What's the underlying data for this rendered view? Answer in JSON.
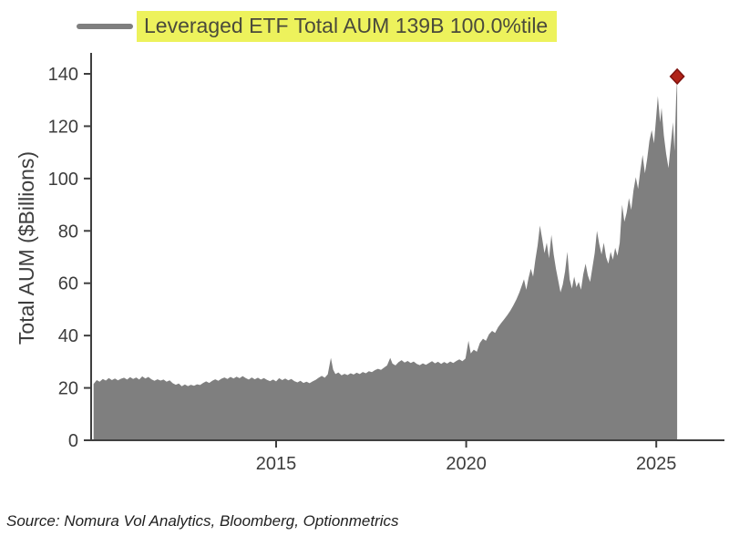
{
  "legend": {
    "label": "Leveraged ETF Total AUM 139B 100.0%tile",
    "marker_color": "#7f7f7f",
    "highlight_color": "#edf25c"
  },
  "source": {
    "text": "Source: Nomura Vol Analytics, Bloomberg, Optionmetrics"
  },
  "colors": {
    "area": "#7f7f7f",
    "axis": "#3f3f3f",
    "tick_text": "#3d3d3d",
    "marker_fill": "#b02318",
    "marker_edge": "#7e120e"
  },
  "chart_data": {
    "type": "area",
    "title": "",
    "xlabel": "",
    "ylabel": "Total AUM ($Billions)",
    "xlim": [
      2010.2,
      2026.3
    ],
    "ylim": [
      0,
      140
    ],
    "x_ticks": [
      2015,
      2020,
      2025
    ],
    "y_ticks": [
      0,
      20,
      40,
      60,
      80,
      100,
      120,
      140
    ],
    "grid": false,
    "legend_position": "top-left",
    "series": [
      {
        "name": "Leveraged ETF Total AUM",
        "unit": "$Billions",
        "last_value_label": "139B",
        "percentile_label": "100.0%tile",
        "points": [
          [
            2010.2,
            21.5
          ],
          [
            2010.28,
            23.0
          ],
          [
            2010.36,
            22.4
          ],
          [
            2010.44,
            23.4
          ],
          [
            2010.52,
            22.8
          ],
          [
            2010.6,
            23.8
          ],
          [
            2010.68,
            23.0
          ],
          [
            2010.76,
            23.6
          ],
          [
            2010.84,
            22.9
          ],
          [
            2010.92,
            23.5
          ],
          [
            2011.0,
            23.9
          ],
          [
            2011.08,
            23.2
          ],
          [
            2011.16,
            24.1
          ],
          [
            2011.24,
            23.4
          ],
          [
            2011.32,
            24.0
          ],
          [
            2011.4,
            23.2
          ],
          [
            2011.48,
            24.4
          ],
          [
            2011.56,
            23.6
          ],
          [
            2011.64,
            24.2
          ],
          [
            2011.72,
            23.3
          ],
          [
            2011.8,
            22.7
          ],
          [
            2011.88,
            23.3
          ],
          [
            2011.96,
            22.8
          ],
          [
            2012.04,
            23.2
          ],
          [
            2012.12,
            22.4
          ],
          [
            2012.2,
            22.9
          ],
          [
            2012.28,
            21.8
          ],
          [
            2012.36,
            21.2
          ],
          [
            2012.44,
            21.7
          ],
          [
            2012.52,
            20.6
          ],
          [
            2012.6,
            21.3
          ],
          [
            2012.68,
            20.7
          ],
          [
            2012.76,
            21.2
          ],
          [
            2012.84,
            20.8
          ],
          [
            2012.92,
            21.4
          ],
          [
            2013.0,
            21.1
          ],
          [
            2013.08,
            21.9
          ],
          [
            2013.16,
            22.5
          ],
          [
            2013.24,
            21.9
          ],
          [
            2013.32,
            22.7
          ],
          [
            2013.4,
            23.3
          ],
          [
            2013.48,
            22.7
          ],
          [
            2013.56,
            23.5
          ],
          [
            2013.64,
            24.0
          ],
          [
            2013.72,
            23.4
          ],
          [
            2013.8,
            24.2
          ],
          [
            2013.88,
            23.6
          ],
          [
            2013.96,
            24.3
          ],
          [
            2014.04,
            23.7
          ],
          [
            2014.12,
            24.5
          ],
          [
            2014.2,
            23.8
          ],
          [
            2014.28,
            23.2
          ],
          [
            2014.36,
            24.0
          ],
          [
            2014.44,
            23.3
          ],
          [
            2014.52,
            23.9
          ],
          [
            2014.6,
            23.2
          ],
          [
            2014.68,
            23.8
          ],
          [
            2014.76,
            23.1
          ],
          [
            2014.84,
            22.6
          ],
          [
            2014.92,
            23.2
          ],
          [
            2015.0,
            22.5
          ],
          [
            2015.08,
            23.7
          ],
          [
            2015.16,
            23.0
          ],
          [
            2015.24,
            23.6
          ],
          [
            2015.32,
            22.9
          ],
          [
            2015.4,
            23.4
          ],
          [
            2015.48,
            22.6
          ],
          [
            2015.56,
            22.1
          ],
          [
            2015.64,
            22.7
          ],
          [
            2015.72,
            21.9
          ],
          [
            2015.8,
            22.4
          ],
          [
            2015.88,
            21.8
          ],
          [
            2015.96,
            22.5
          ],
          [
            2016.04,
            23.1
          ],
          [
            2016.12,
            23.9
          ],
          [
            2016.2,
            24.6
          ],
          [
            2016.28,
            23.9
          ],
          [
            2016.36,
            25.2
          ],
          [
            2016.44,
            31.5
          ],
          [
            2016.5,
            27.0
          ],
          [
            2016.56,
            25.3
          ],
          [
            2016.64,
            25.9
          ],
          [
            2016.72,
            24.8
          ],
          [
            2016.8,
            25.4
          ],
          [
            2016.88,
            24.9
          ],
          [
            2016.96,
            25.6
          ],
          [
            2017.04,
            25.1
          ],
          [
            2017.12,
            25.8
          ],
          [
            2017.2,
            25.3
          ],
          [
            2017.28,
            26.1
          ],
          [
            2017.36,
            25.6
          ],
          [
            2017.44,
            26.4
          ],
          [
            2017.52,
            26.0
          ],
          [
            2017.6,
            26.8
          ],
          [
            2017.68,
            27.3
          ],
          [
            2017.76,
            26.9
          ],
          [
            2017.84,
            27.8
          ],
          [
            2017.92,
            28.6
          ],
          [
            2018.0,
            31.5
          ],
          [
            2018.06,
            29.3
          ],
          [
            2018.14,
            28.6
          ],
          [
            2018.22,
            29.8
          ],
          [
            2018.3,
            30.6
          ],
          [
            2018.38,
            29.7
          ],
          [
            2018.46,
            30.3
          ],
          [
            2018.54,
            29.5
          ],
          [
            2018.62,
            30.1
          ],
          [
            2018.7,
            29.2
          ],
          [
            2018.78,
            28.7
          ],
          [
            2018.86,
            29.4
          ],
          [
            2018.94,
            28.8
          ],
          [
            2019.02,
            29.5
          ],
          [
            2019.1,
            30.2
          ],
          [
            2019.18,
            29.4
          ],
          [
            2019.26,
            30.0
          ],
          [
            2019.34,
            29.2
          ],
          [
            2019.42,
            29.9
          ],
          [
            2019.5,
            29.3
          ],
          [
            2019.58,
            30.1
          ],
          [
            2019.66,
            29.5
          ],
          [
            2019.74,
            30.3
          ],
          [
            2019.82,
            30.9
          ],
          [
            2019.9,
            30.2
          ],
          [
            2019.98,
            31.2
          ],
          [
            2020.06,
            38.0
          ],
          [
            2020.12,
            33.2
          ],
          [
            2020.2,
            34.6
          ],
          [
            2020.28,
            33.8
          ],
          [
            2020.36,
            37.2
          ],
          [
            2020.44,
            38.8
          ],
          [
            2020.52,
            38.0
          ],
          [
            2020.6,
            40.5
          ],
          [
            2020.68,
            41.8
          ],
          [
            2020.76,
            41.0
          ],
          [
            2020.84,
            43.2
          ],
          [
            2020.92,
            44.8
          ],
          [
            2021.0,
            46.2
          ],
          [
            2021.08,
            47.8
          ],
          [
            2021.16,
            49.5
          ],
          [
            2021.24,
            51.5
          ],
          [
            2021.32,
            53.8
          ],
          [
            2021.4,
            56.5
          ],
          [
            2021.46,
            59.0
          ],
          [
            2021.52,
            61.5
          ],
          [
            2021.58,
            57.5
          ],
          [
            2021.64,
            62.0
          ],
          [
            2021.7,
            65.5
          ],
          [
            2021.76,
            62.5
          ],
          [
            2021.82,
            69.0
          ],
          [
            2021.88,
            74.5
          ],
          [
            2021.94,
            82.0
          ],
          [
            2022.0,
            77.0
          ],
          [
            2022.06,
            71.5
          ],
          [
            2022.12,
            75.5
          ],
          [
            2022.18,
            69.5
          ],
          [
            2022.24,
            78.5
          ],
          [
            2022.3,
            71.0
          ],
          [
            2022.36,
            65.5
          ],
          [
            2022.42,
            61.0
          ],
          [
            2022.48,
            56.5
          ],
          [
            2022.54,
            59.5
          ],
          [
            2022.6,
            64.5
          ],
          [
            2022.66,
            72.0
          ],
          [
            2022.72,
            61.5
          ],
          [
            2022.78,
            58.0
          ],
          [
            2022.84,
            62.5
          ],
          [
            2022.9,
            58.5
          ],
          [
            2022.96,
            60.5
          ],
          [
            2023.02,
            57.5
          ],
          [
            2023.08,
            63.5
          ],
          [
            2023.14,
            67.5
          ],
          [
            2023.2,
            63.0
          ],
          [
            2023.26,
            60.5
          ],
          [
            2023.32,
            66.0
          ],
          [
            2023.38,
            71.5
          ],
          [
            2023.44,
            80.0
          ],
          [
            2023.5,
            75.0
          ],
          [
            2023.56,
            71.0
          ],
          [
            2023.62,
            75.5
          ],
          [
            2023.68,
            70.0
          ],
          [
            2023.74,
            67.5
          ],
          [
            2023.8,
            72.0
          ],
          [
            2023.86,
            69.0
          ],
          [
            2023.92,
            73.5
          ],
          [
            2023.98,
            70.5
          ],
          [
            2024.04,
            75.5
          ],
          [
            2024.1,
            90.0
          ],
          [
            2024.16,
            83.5
          ],
          [
            2024.22,
            87.0
          ],
          [
            2024.28,
            92.5
          ],
          [
            2024.34,
            88.0
          ],
          [
            2024.4,
            95.5
          ],
          [
            2024.46,
            100.5
          ],
          [
            2024.52,
            96.0
          ],
          [
            2024.58,
            103.0
          ],
          [
            2024.64,
            109.0
          ],
          [
            2024.7,
            102.0
          ],
          [
            2024.76,
            107.5
          ],
          [
            2024.82,
            114.5
          ],
          [
            2024.88,
            118.5
          ],
          [
            2024.94,
            113.5
          ],
          [
            2025.0,
            124.0
          ],
          [
            2025.04,
            131.5
          ],
          [
            2025.1,
            121.5
          ],
          [
            2025.14,
            127.0
          ],
          [
            2025.2,
            116.5
          ],
          [
            2025.26,
            109.5
          ],
          [
            2025.32,
            104.0
          ],
          [
            2025.38,
            113.0
          ],
          [
            2025.44,
            121.5
          ],
          [
            2025.48,
            110.5
          ],
          [
            2025.52,
            130.0
          ],
          [
            2025.55,
            139.0
          ]
        ]
      }
    ],
    "end_marker": {
      "x": 2025.55,
      "y": 139,
      "shape": "diamond",
      "color": "#b02318"
    }
  }
}
